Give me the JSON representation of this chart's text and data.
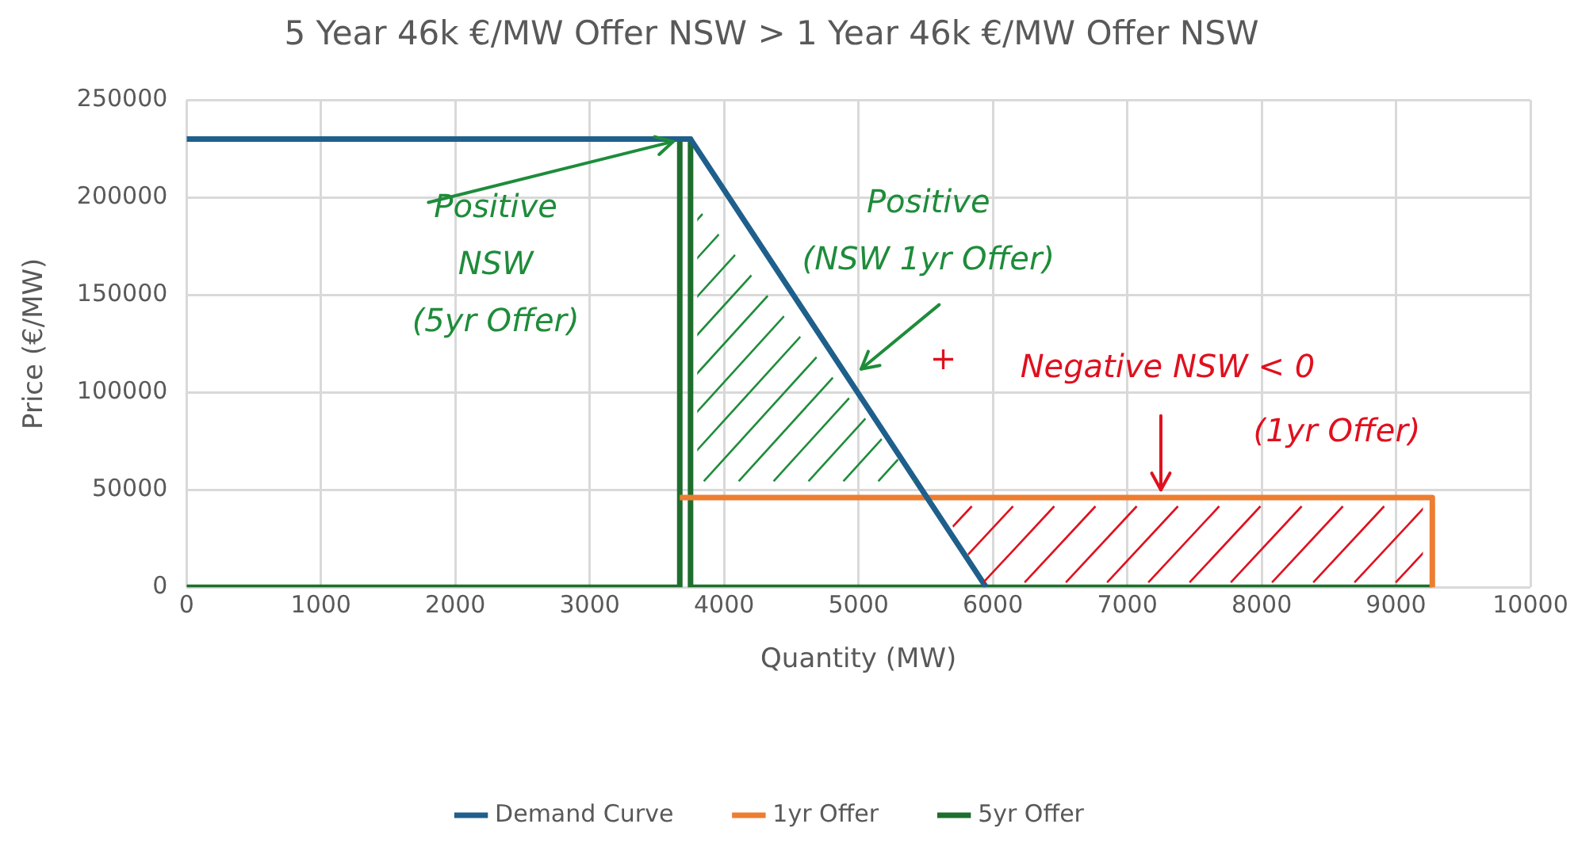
{
  "chart_data": {
    "type": "line",
    "title": "5 Year 46k €/MW Offer NSW > 1 Year 46k €/MW Offer NSW",
    "xlabel": "Quantity (MW)",
    "ylabel": "Price (€/MW)",
    "series": [
      {
        "name": "Demand Curve",
        "color": "#1f5f8b",
        "x": [
          0,
          3750,
          5950
        ],
        "values": [
          230000,
          230000,
          0
        ]
      },
      {
        "name": "1yr Offer",
        "color": "#ed7d31",
        "x": [
          3670,
          9270,
          9270
        ],
        "values": [
          46000,
          46000,
          0
        ]
      },
      {
        "name": "5yr Offer",
        "color": "#1e6e2e",
        "x": [
          0,
          3670,
          3670,
          3750,
          3750,
          9270
        ],
        "values": [
          0,
          0,
          230000,
          230000,
          0,
          0
        ]
      }
    ],
    "xlim": [
      0,
      10000
    ],
    "xticks": [
      0,
      1000,
      2000,
      3000,
      4000,
      5000,
      6000,
      7000,
      8000,
      9000,
      10000
    ],
    "ylim": [
      0,
      250000
    ],
    "yticks": [
      0,
      50000,
      100000,
      150000,
      200000,
      250000
    ],
    "grid": true,
    "legend": "bottom",
    "marker": "none",
    "line_style": "solid",
    "annotations": [
      {
        "text": "Positive\nNSW\n(5yr Offer)",
        "x": 3670,
        "y": 230000
      },
      "Positive\n(NSW 1yr Offer)",
      "+",
      "Negative NSW < 0",
      "(1yr Offer)"
    ]
  }
}
